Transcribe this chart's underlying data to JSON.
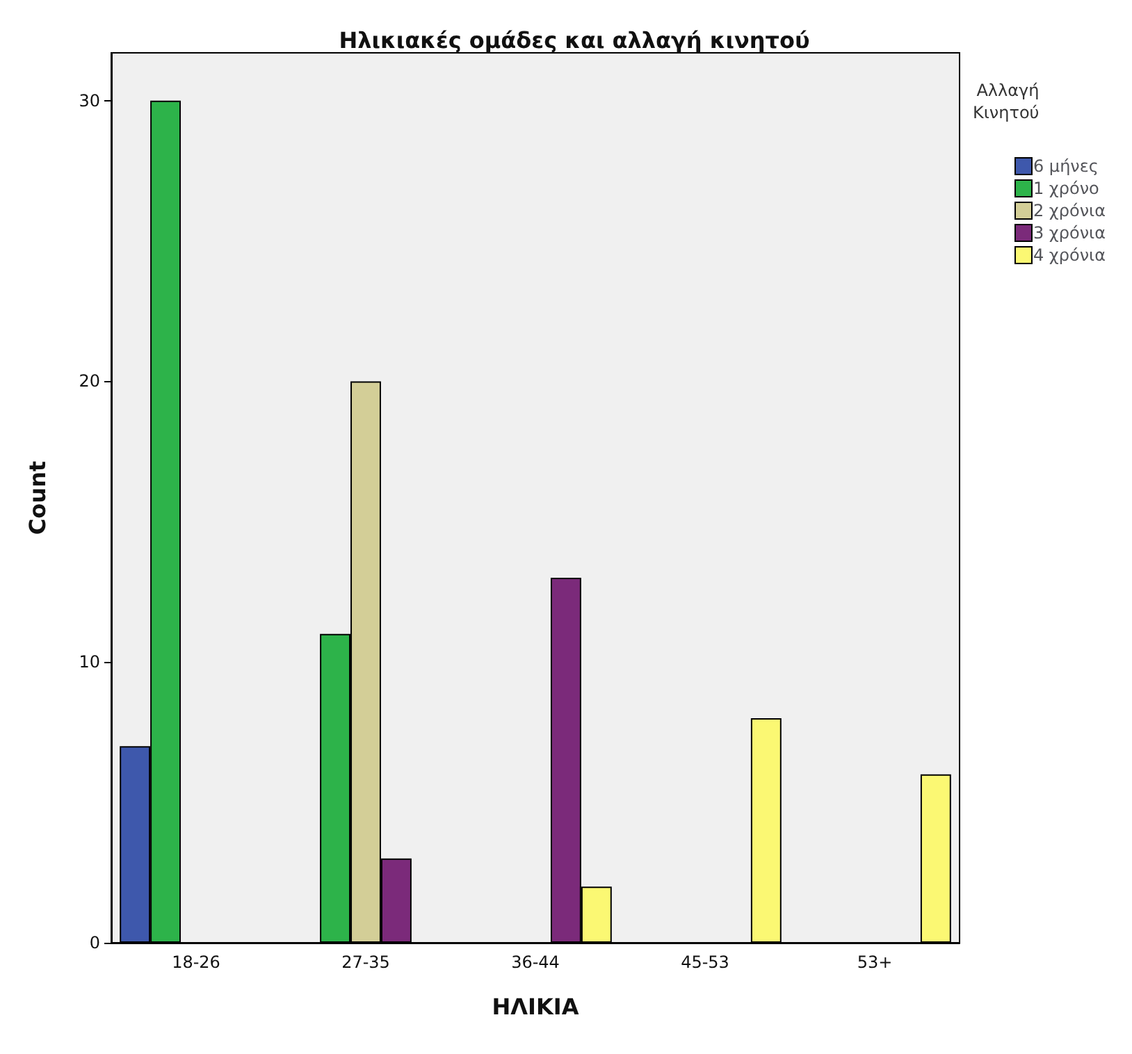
{
  "chart_data": {
    "type": "bar",
    "title": "Ηλικιακές ομάδες και αλλαγή κινητού",
    "xlabel": "ΗΛΙΚΙΑ",
    "ylabel": "Count",
    "legend_title": "Αλλαγή Κινητού",
    "legend": "right",
    "categories": [
      "18-26",
      "27-35",
      "36-44",
      "45-53",
      "53+"
    ],
    "series": [
      {
        "name": "6 μήνες",
        "color": "#3e58ac",
        "values": [
          7,
          null,
          null,
          null,
          null
        ]
      },
      {
        "name": "1 χρόνο",
        "color": "#2db34a",
        "values": [
          30,
          11,
          null,
          null,
          null
        ]
      },
      {
        "name": "2 χρόνια",
        "color": "#d3ce97",
        "values": [
          null,
          20,
          null,
          null,
          null
        ]
      },
      {
        "name": "3 χρόνια",
        "color": "#7b2a7a",
        "values": [
          null,
          3,
          13,
          null,
          null
        ]
      },
      {
        "name": "4 χρόνια",
        "color": "#fbf873",
        "values": [
          null,
          null,
          2,
          8,
          6
        ]
      }
    ],
    "ylim": [
      0,
      31.7
    ],
    "yticks": [
      0,
      10,
      20,
      30
    ]
  }
}
